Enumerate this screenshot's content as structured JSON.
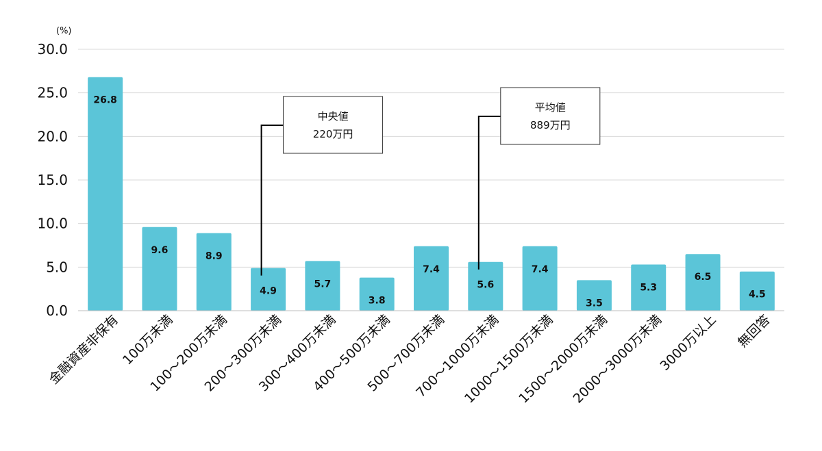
{
  "chart_data": {
    "type": "bar",
    "unit_label": "(%)",
    "categories": [
      "金融資産非保有",
      "100万未満",
      "100～200万未満",
      "200～300万未満",
      "300～400万未満",
      "400～500万未満",
      "500～700万未満",
      "700～1000万未満",
      "1000～1500万未満",
      "1500～2000万未満",
      "2000～3000万未満",
      "3000万以上",
      "無回答"
    ],
    "values": [
      26.8,
      9.6,
      8.9,
      4.9,
      5.7,
      3.8,
      7.4,
      5.6,
      7.4,
      3.5,
      5.3,
      6.5,
      4.5
    ],
    "value_labels": [
      "26.8",
      "9.6",
      "8.9",
      "4.9",
      "5.7",
      "3.8",
      "7.4",
      "5.6",
      "7.4",
      "3.5",
      "5.3",
      "6.5",
      "4.5"
    ],
    "ylim": [
      0,
      30
    ],
    "yticks": [
      "0.0",
      "5.0",
      "10.0",
      "15.0",
      "20.0",
      "25.0",
      "30.0"
    ],
    "grid": true,
    "bar_color": "#5bc5d8",
    "annotations": [
      {
        "category_index": 3,
        "line1": "中央値",
        "line2": "220万円"
      },
      {
        "category_index": 7,
        "line1": "平均値",
        "line2": "889万円"
      }
    ]
  }
}
